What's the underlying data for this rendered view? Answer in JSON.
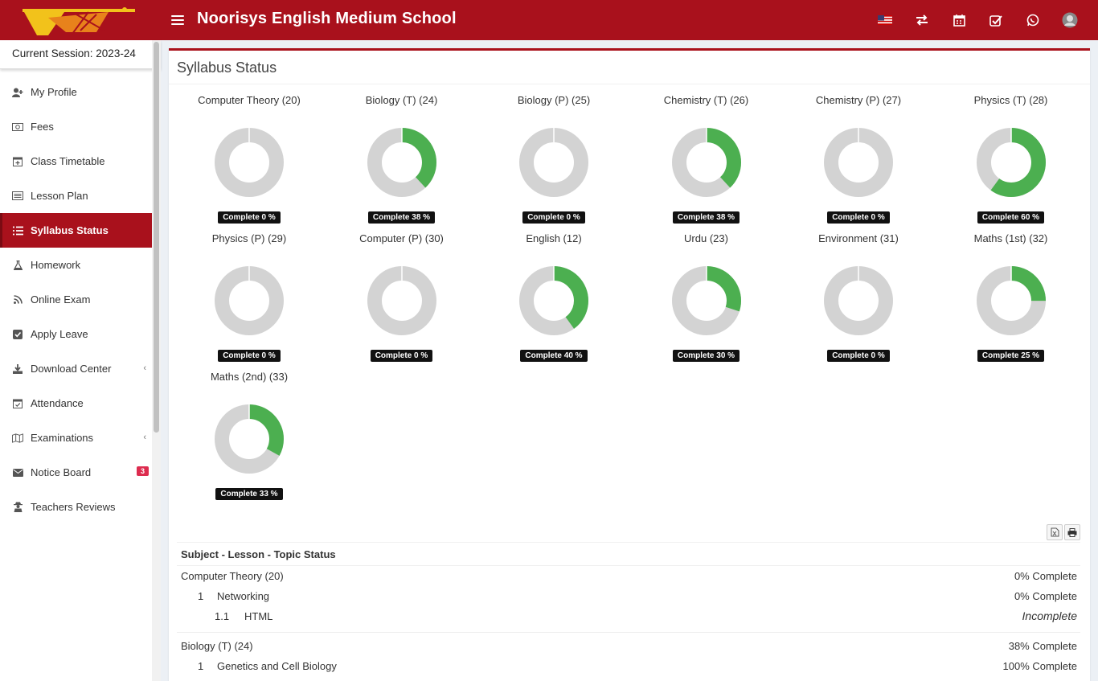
{
  "header": {
    "brand": "Noorisys English Medium School",
    "icons": [
      "us-flag-icon",
      "switch-icon",
      "calendar-icon",
      "task-check-icon",
      "whatsapp-icon",
      "user-avatar"
    ]
  },
  "sidebar": {
    "session": "Current Session: 2023-24",
    "items": [
      {
        "label": "My Profile",
        "icon": "user-plus-icon"
      },
      {
        "label": "Fees",
        "icon": "money-icon"
      },
      {
        "label": "Class Timetable",
        "icon": "calendar-plus-icon"
      },
      {
        "label": "Lesson Plan",
        "icon": "list-alt-icon"
      },
      {
        "label": "Syllabus Status",
        "icon": "list-icon",
        "active": true
      },
      {
        "label": "Homework",
        "icon": "flask-icon"
      },
      {
        "label": "Online Exam",
        "icon": "rss-icon"
      },
      {
        "label": "Apply Leave",
        "icon": "check-square-icon"
      },
      {
        "label": "Download Center",
        "icon": "download-icon",
        "chevron": "‹"
      },
      {
        "label": "Attendance",
        "icon": "calendar-check-icon"
      },
      {
        "label": "Examinations",
        "icon": "map-icon",
        "chevron": "‹"
      },
      {
        "label": "Notice Board",
        "icon": "envelope-icon",
        "badge": "3"
      },
      {
        "label": "Teachers Reviews",
        "icon": "user-secret-icon"
      }
    ]
  },
  "main": {
    "title": "Syllabus Status",
    "status_header": "Subject - Lesson - Topic Status"
  },
  "chart_data": {
    "type": "pie",
    "variant": "doughnut",
    "colors": {
      "complete": "#4caf50",
      "remaining": "#d3d3d3"
    },
    "items": [
      {
        "title": "Computer Theory (20)",
        "value": 0,
        "label": "Complete 0 %"
      },
      {
        "title": "Biology (T) (24)",
        "value": 38,
        "label": "Complete 38 %"
      },
      {
        "title": "Biology (P) (25)",
        "value": 0,
        "label": "Complete 0 %"
      },
      {
        "title": "Chemistry (T) (26)",
        "value": 38,
        "label": "Complete 38 %"
      },
      {
        "title": "Chemistry (P) (27)",
        "value": 0,
        "label": "Complete 0 %"
      },
      {
        "title": "Physics (T) (28)",
        "value": 60,
        "label": "Complete 60 %"
      },
      {
        "title": "Physics (P) (29)",
        "value": 0,
        "label": "Complete 0 %"
      },
      {
        "title": "Computer (P) (30)",
        "value": 0,
        "label": "Complete 0 %"
      },
      {
        "title": "English (12)",
        "value": 40,
        "label": "Complete 40 %"
      },
      {
        "title": "Urdu (23)",
        "value": 30,
        "label": "Complete 30 %"
      },
      {
        "title": "Environment (31)",
        "value": 0,
        "label": "Complete 0 %"
      },
      {
        "title": "Maths (1st) (32)",
        "value": 25,
        "label": "Complete 25 %"
      },
      {
        "title": "Maths (2nd) (33)",
        "value": 33,
        "label": "Complete 33 %"
      }
    ]
  },
  "status_rows": [
    {
      "type": "subject",
      "name": "Computer Theory (20)",
      "status": "0% Complete"
    },
    {
      "type": "lesson",
      "num": "1",
      "name": "Networking",
      "status": "0% Complete"
    },
    {
      "type": "topic",
      "num": "1.1",
      "name": "HTML",
      "status": "Incomplete"
    },
    {
      "type": "gap"
    },
    {
      "type": "subject",
      "name": "Biology (T) (24)",
      "status": "38% Complete"
    },
    {
      "type": "lesson",
      "num": "1",
      "name": "Genetics and Cell Biology",
      "status": "100% Complete"
    }
  ]
}
